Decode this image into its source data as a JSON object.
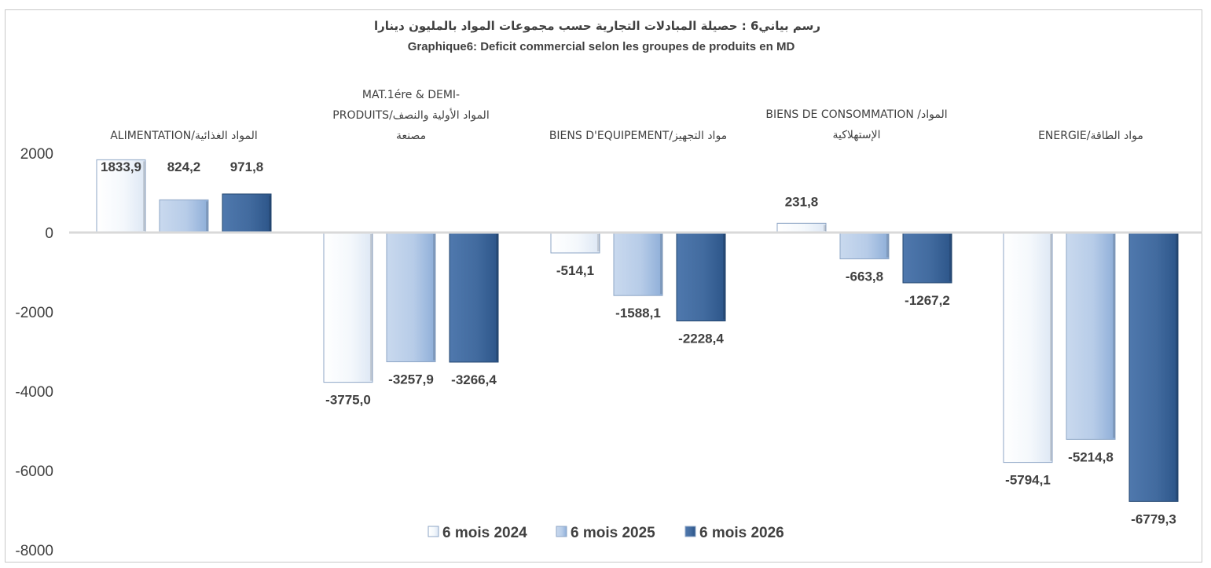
{
  "chart_data": {
    "type": "bar",
    "title": "رسم بياني6 : حصيلة المبادلات التجارية حسب مجموعات المواد بالمليون دينارا",
    "subtitle": "Graphique6: Deficit commercial selon les groupes de produits en MD",
    "categories": [
      [
        "ALIMENTATION/المواد الغذائية"
      ],
      [
        "MAT.1ére & DEMI-",
        "PRODUITS/المواد الأولية والنصف",
        "مصنعة"
      ],
      [
        "BIENS D'EQUIPEMENT/مواد التجهيز"
      ],
      [
        "BIENS DE CONSOMMATION /المواد",
        "الإستهلاكية"
      ],
      [
        "ENERGIE/مواد الطاقة"
      ]
    ],
    "series": [
      {
        "name": "6 mois 2024",
        "color": "#e6eef8",
        "values": [
          1833.9,
          -3775.0,
          -514.1,
          231.8,
          -5794.1
        ]
      },
      {
        "name": "6 mois 2025",
        "color": "#9bb7dd",
        "values": [
          824.2,
          -3257.9,
          -1588.1,
          -663.8,
          -5214.8
        ]
      },
      {
        "name": "6 mois 2026",
        "color": "#355f97",
        "values": [
          971.8,
          -3266.4,
          -2228.4,
          -1267.2,
          -6779.3
        ]
      }
    ],
    "yticks": [
      "2000",
      "0",
      "-2000",
      "-4000",
      "-6000",
      "-8000"
    ],
    "ylim": [
      -8000,
      2000
    ],
    "value_labels": [
      [
        "1833,9",
        "-3775,0",
        "-514,1",
        "231,8",
        "-5794,1"
      ],
      [
        "824,2",
        "-3257,9",
        "-1588,1",
        "-663,8",
        "-5214,8"
      ],
      [
        "971,8",
        "-3266,4",
        "-2228,4",
        "-1267,2",
        "-6779,3"
      ]
    ],
    "grid": false,
    "legend": "bottom"
  }
}
